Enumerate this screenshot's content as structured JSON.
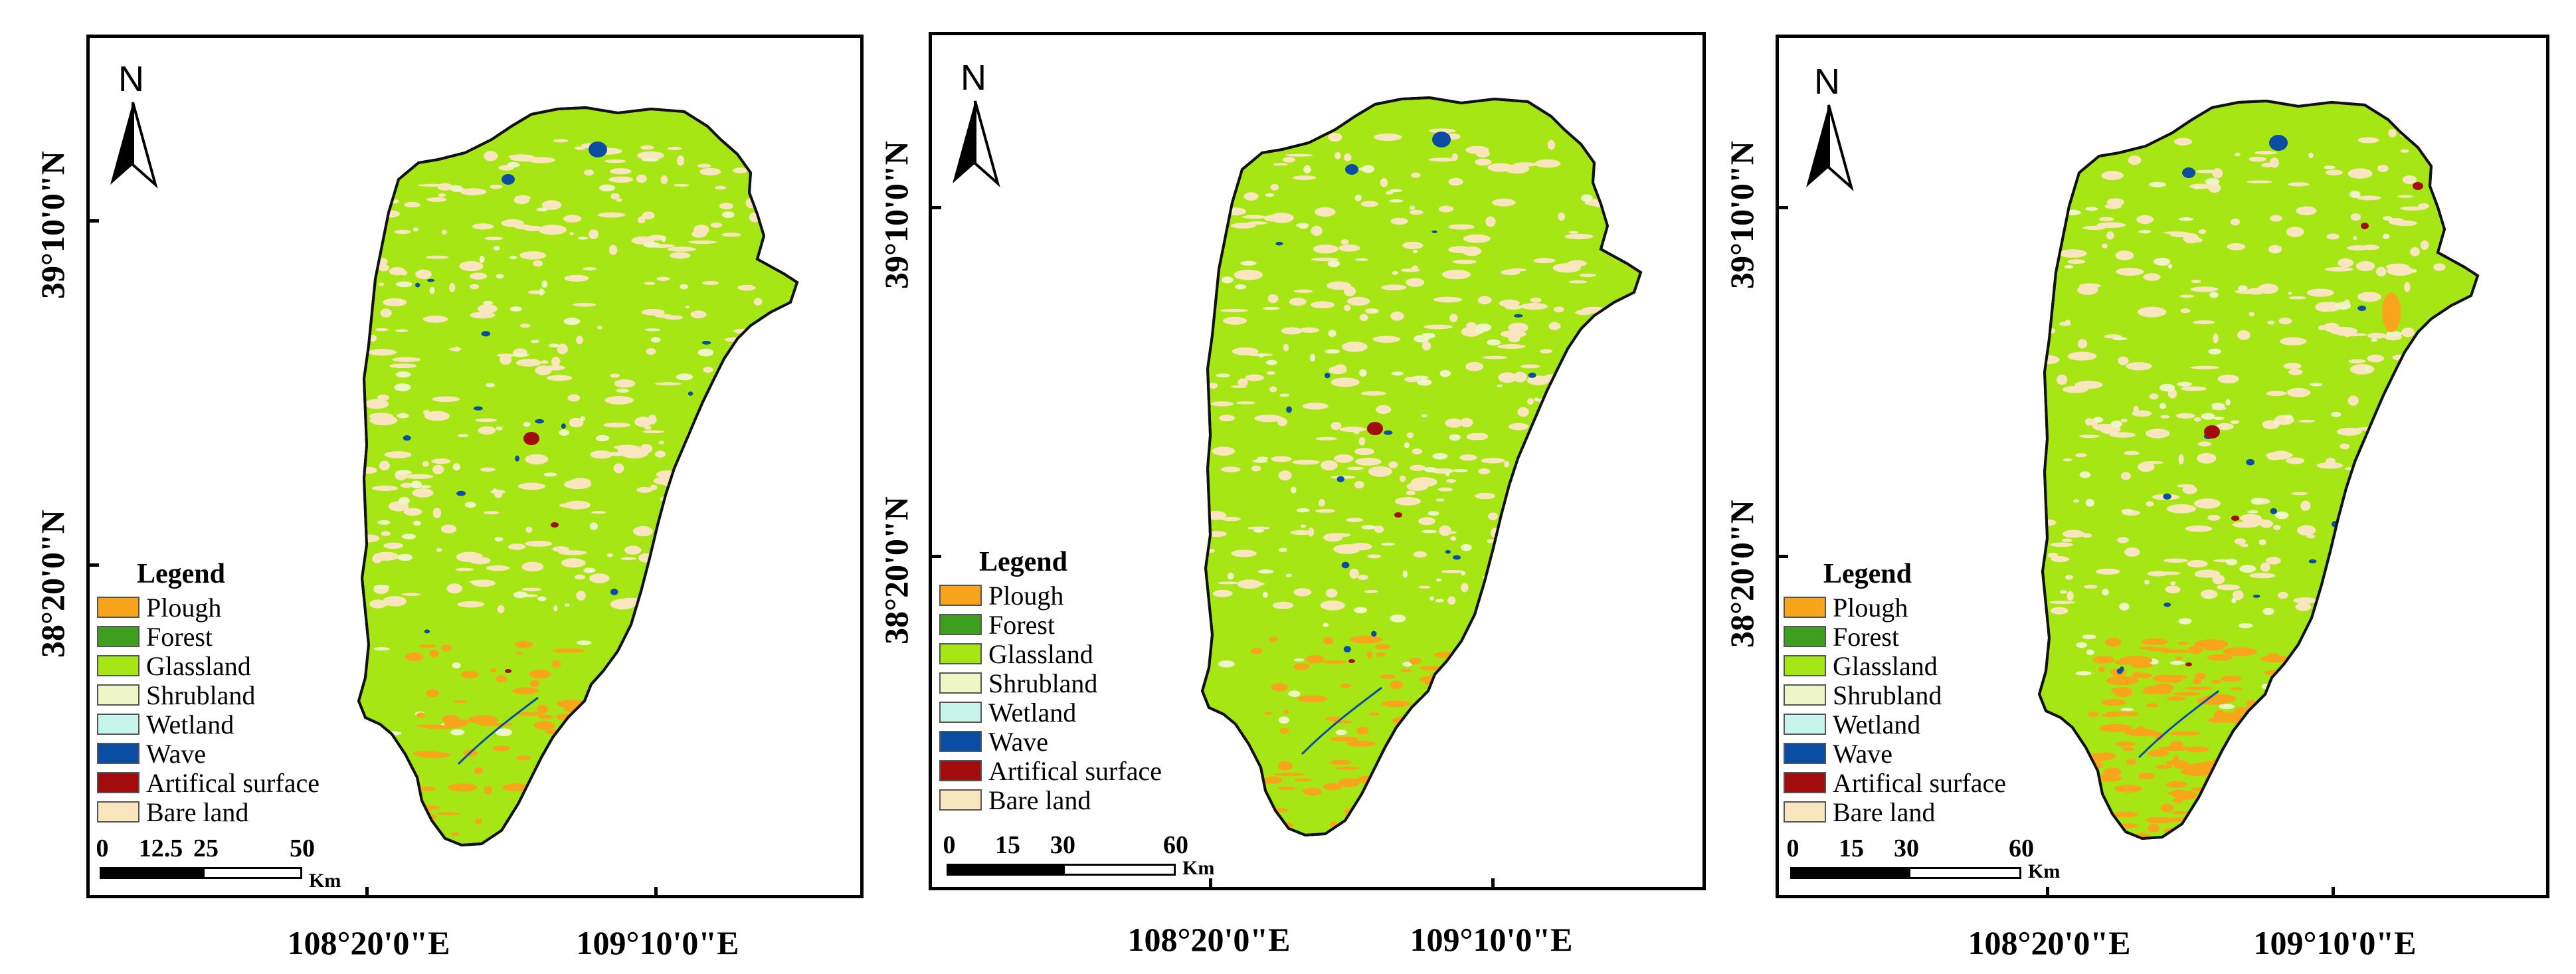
{
  "colors": {
    "plough": "#F9A51B",
    "forest": "#3E9E1E",
    "glassland": "#A6E614",
    "shrubland": "#EEF6C8",
    "wetland": "#C7F5EC",
    "wave": "#0B4DA2",
    "artifical_surface": "#A30C0C",
    "bare_land": "#F9E6BF",
    "outline": "#111111"
  },
  "north_arrow": {
    "letter": "N",
    "icon": "north-arrow-icon"
  },
  "axes": {
    "latitudes": [
      "39°10'0\"N",
      "38°20'0\"N"
    ],
    "longitudes": [
      "108°20'0\"E",
      "109°10'0\"E"
    ]
  },
  "panels": [
    {
      "legend": {
        "title": "Legend",
        "items": [
          {
            "label": "Plough",
            "color": "#F9A51B"
          },
          {
            "label": "Forest",
            "color": "#3E9E1E"
          },
          {
            "label": "Glassland",
            "color": "#A6E614"
          },
          {
            "label": "Shrubland",
            "color": "#EEF6C8"
          },
          {
            "label": "Wetland",
            "color": "#C7F5EC"
          },
          {
            "label": "Wave",
            "color": "#0B4DA2"
          },
          {
            "label": "Artifical surface",
            "color": "#A30C0C"
          },
          {
            "label": "Bare land",
            "color": "#F9E6BF"
          }
        ]
      },
      "scale": {
        "ticks": [
          "0",
          "12.5",
          "25",
          "50"
        ],
        "unit": "Km"
      }
    },
    {
      "legend": {
        "title": "Legend",
        "items": [
          {
            "label": "Plough",
            "color": "#F9A51B"
          },
          {
            "label": "Forest",
            "color": "#3E9E1E"
          },
          {
            "label": "Glassland",
            "color": "#A6E614"
          },
          {
            "label": "Shrubland",
            "color": "#EEF6C8"
          },
          {
            "label": "Wetland",
            "color": "#C7F5EC"
          },
          {
            "label": "Wave",
            "color": "#0B4DA2"
          },
          {
            "label": "Artifical surface",
            "color": "#A30C0C"
          },
          {
            "label": "Bare land",
            "color": "#F9E6BF"
          }
        ]
      },
      "scale": {
        "ticks": [
          "0",
          "15",
          "30",
          "60"
        ],
        "unit": "Km"
      }
    },
    {
      "legend": {
        "title": "Legend",
        "items": [
          {
            "label": "Plough",
            "color": "#F9A51B"
          },
          {
            "label": "Forest",
            "color": "#3E9E1E"
          },
          {
            "label": "Glassland",
            "color": "#A6E614"
          },
          {
            "label": "Shrubland",
            "color": "#EEF6C8"
          },
          {
            "label": "Wetland",
            "color": "#C7F5EC"
          },
          {
            "label": "Wave",
            "color": "#0B4DA2"
          },
          {
            "label": "Artifical surface",
            "color": "#A30C0C"
          },
          {
            "label": "Bare land",
            "color": "#F9E6BF"
          }
        ]
      },
      "scale": {
        "ticks": [
          "0",
          "15",
          "30",
          "60"
        ],
        "unit": "Km"
      }
    }
  ]
}
